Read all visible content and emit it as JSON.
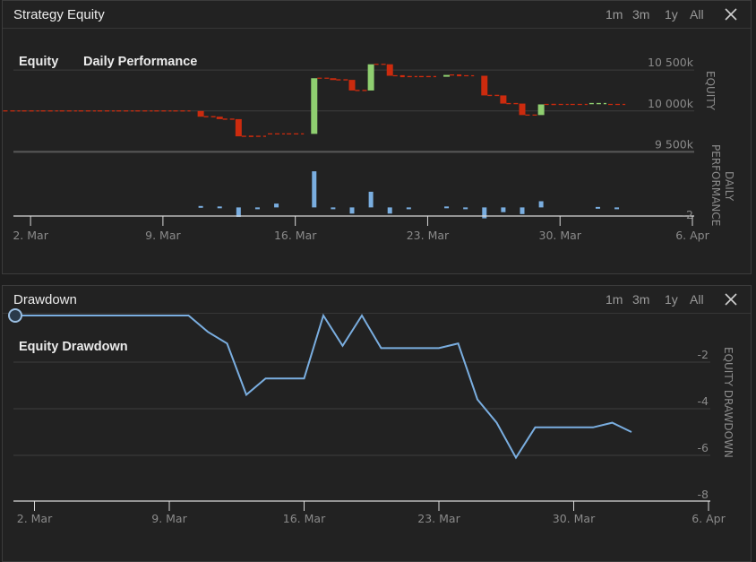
{
  "panel1": {
    "title": "Strategy Equity",
    "ranges": [
      "1m",
      "3m",
      "1y",
      "All"
    ],
    "labels": {
      "equity": "Equity",
      "daily": "Daily Performance"
    },
    "axis_equity": "EQUITY",
    "axis_daily": [
      "DAILY",
      "PERFORMANCE"
    ]
  },
  "panel2": {
    "title": "Drawdown",
    "ranges": [
      "1m",
      "3m",
      "1y",
      "All"
    ],
    "label": "Equity Drawdown",
    "axis": "EQUITY DRAWDOWN"
  },
  "colors": {
    "up": "#8fcf70",
    "down": "#cc2b0e",
    "line": "#7aaee0",
    "background": "#222222"
  },
  "chart_data": [
    {
      "type": "candlestick",
      "title": "Equity",
      "ylabel": "EQUITY",
      "x_axis": {
        "start": "2026-03-01",
        "end": "2026-04-06",
        "ticks": [
          "2026-03-02",
          "2026-03-09",
          "2026-03-16",
          "2026-03-23",
          "2026-03-30",
          "2026-04-06"
        ],
        "tick_labels": [
          "2. Mar",
          "9. Mar",
          "16. Mar",
          "23. Mar",
          "30. Mar",
          "6. Apr"
        ]
      },
      "ylim": [
        9450,
        10600
      ],
      "y_ticks": [
        9500,
        10000,
        10500
      ],
      "y_tick_labels": [
        "9 500k",
        "10 000k",
        "10 500k"
      ],
      "grid": true,
      "series": [
        {
          "points": [
            {
              "date": "2026-03-01",
              "open": 10000,
              "close": 10000
            },
            {
              "date": "2026-03-02",
              "open": 10000,
              "close": 10000
            },
            {
              "date": "2026-03-03",
              "open": 10000,
              "close": 10000
            },
            {
              "date": "2026-03-04",
              "open": 10000,
              "close": 10000
            },
            {
              "date": "2026-03-05",
              "open": 10000,
              "close": 10000
            },
            {
              "date": "2026-03-06",
              "open": 10000,
              "close": 10000
            },
            {
              "date": "2026-03-07",
              "open": 10000,
              "close": 10000
            },
            {
              "date": "2026-03-08",
              "open": 10000,
              "close": 10000
            },
            {
              "date": "2026-03-09",
              "open": 10000,
              "close": 10000
            },
            {
              "date": "2026-03-10",
              "open": 10000,
              "close": 10000
            },
            {
              "date": "2026-03-11",
              "open": 10000,
              "close": 9930
            },
            {
              "date": "2026-03-12",
              "open": 9930,
              "close": 9900
            },
            {
              "date": "2026-03-13",
              "open": 9900,
              "close": 9690
            },
            {
              "date": "2026-03-14",
              "open": 9690,
              "close": 9690
            },
            {
              "date": "2026-03-15",
              "open": 9720,
              "close": 9720
            },
            {
              "date": "2026-03-16",
              "open": 9720,
              "close": 9720
            },
            {
              "date": "2026-03-17",
              "open": 9720,
              "close": 10400
            },
            {
              "date": "2026-03-18",
              "open": 10400,
              "close": 10380
            },
            {
              "date": "2026-03-19",
              "open": 10380,
              "close": 10250
            },
            {
              "date": "2026-03-20",
              "open": 10250,
              "close": 10570
            },
            {
              "date": "2026-03-21",
              "open": 10570,
              "close": 10430
            },
            {
              "date": "2026-03-22",
              "open": 10430,
              "close": 10420
            },
            {
              "date": "2026-03-23",
              "open": 10420,
              "close": 10420
            },
            {
              "date": "2026-03-24",
              "open": 10420,
              "close": 10440
            },
            {
              "date": "2026-03-25",
              "open": 10440,
              "close": 10430
            },
            {
              "date": "2026-03-26",
              "open": 10430,
              "close": 10190
            },
            {
              "date": "2026-03-27",
              "open": 10190,
              "close": 10090
            },
            {
              "date": "2026-03-28",
              "open": 10090,
              "close": 9950
            },
            {
              "date": "2026-03-29",
              "open": 9950,
              "close": 10080
            },
            {
              "date": "2026-03-30",
              "open": 10080,
              "close": 10080
            },
            {
              "date": "2026-03-31",
              "open": 10080,
              "close": 10080
            },
            {
              "date": "2026-04-01",
              "open": 10080,
              "close": 10090
            },
            {
              "date": "2026-04-02",
              "open": 10090,
              "close": 10080
            }
          ]
        }
      ]
    },
    {
      "type": "bar",
      "title": "Daily Performance",
      "ylabel": "DAILY PERFORMANCE",
      "ylim": [
        -2,
        8
      ],
      "y_ticks": [
        -2
      ],
      "y_tick_labels": [
        "-2"
      ],
      "series": [
        {
          "points": [
            {
              "date": "2026-03-11",
              "value": 0.3
            },
            {
              "date": "2026-03-12",
              "value": 0.2
            },
            {
              "date": "2026-03-13",
              "value": -2.0
            },
            {
              "date": "2026-03-14",
              "value": 0.0
            },
            {
              "date": "2026-03-15",
              "value": 0.8
            },
            {
              "date": "2026-03-17",
              "value": 7.6
            },
            {
              "date": "2026-03-18",
              "value": -0.2
            },
            {
              "date": "2026-03-19",
              "value": -1.3
            },
            {
              "date": "2026-03-20",
              "value": 3.3
            },
            {
              "date": "2026-03-21",
              "value": -1.3
            },
            {
              "date": "2026-03-22",
              "value": -0.1
            },
            {
              "date": "2026-03-24",
              "value": 0.2
            },
            {
              "date": "2026-03-25",
              "value": -0.1
            },
            {
              "date": "2026-03-26",
              "value": -2.3
            },
            {
              "date": "2026-03-27",
              "value": -1.0
            },
            {
              "date": "2026-03-28",
              "value": -1.4
            },
            {
              "date": "2026-03-29",
              "value": 1.3
            },
            {
              "date": "2026-04-01",
              "value": 0.1
            },
            {
              "date": "2026-04-02",
              "value": -0.1
            }
          ]
        }
      ]
    },
    {
      "type": "line",
      "title": "Equity Drawdown",
      "ylabel": "EQUITY DRAWDOWN",
      "ylim": [
        -8,
        0
      ],
      "y_ticks": [
        -2,
        -4,
        -6,
        -8
      ],
      "y_tick_labels": [
        "-2",
        "-4",
        "-6",
        "-8"
      ],
      "x_axis": {
        "start": "2026-03-01",
        "end": "2026-04-06",
        "ticks": [
          "2026-03-02",
          "2026-03-09",
          "2026-03-16",
          "2026-03-23",
          "2026-03-30",
          "2026-04-06"
        ],
        "tick_labels": [
          "2. Mar",
          "9. Mar",
          "16. Mar",
          "23. Mar",
          "30. Mar",
          "6. Apr"
        ]
      },
      "grid": true,
      "series": [
        {
          "points": [
            {
              "date": "2026-03-01",
              "value": 0.0
            },
            {
              "date": "2026-03-10",
              "value": 0.0
            },
            {
              "date": "2026-03-11",
              "value": -0.7
            },
            {
              "date": "2026-03-12",
              "value": -1.2
            },
            {
              "date": "2026-03-13",
              "value": -3.4
            },
            {
              "date": "2026-03-14",
              "value": -2.7
            },
            {
              "date": "2026-03-16",
              "value": -2.7
            },
            {
              "date": "2026-03-17",
              "value": 0.0
            },
            {
              "date": "2026-03-18",
              "value": -1.3
            },
            {
              "date": "2026-03-19",
              "value": 0.0
            },
            {
              "date": "2026-03-20",
              "value": -1.4
            },
            {
              "date": "2026-03-23",
              "value": -1.4
            },
            {
              "date": "2026-03-24",
              "value": -1.2
            },
            {
              "date": "2026-03-25",
              "value": -3.6
            },
            {
              "date": "2026-03-26",
              "value": -4.6
            },
            {
              "date": "2026-03-27",
              "value": -6.1
            },
            {
              "date": "2026-03-28",
              "value": -4.8
            },
            {
              "date": "2026-03-31",
              "value": -4.8
            },
            {
              "date": "2026-04-01",
              "value": -4.6
            },
            {
              "date": "2026-04-02",
              "value": -5.0
            }
          ]
        }
      ]
    }
  ]
}
